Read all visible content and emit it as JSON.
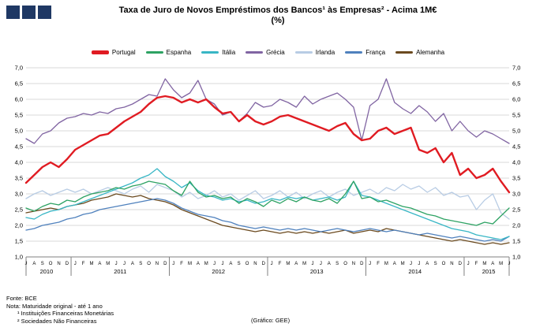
{
  "logo": {
    "color": "#1f3864",
    "square_count": 3
  },
  "header": {
    "title": "Taxa de Juro de Novos Empréstimos dos Bancos¹ às Empresas² - Acima 1M€",
    "subtitle": "(%)"
  },
  "footer": {
    "line1": "Fonte: BCE",
    "line2": "Nota: Maturidade original - até 1 ano",
    "line3": "¹ Instituições Financeiras Monetárias",
    "line4": "² Sociedades Não Financeiras",
    "credit": "(Gráfico: GEE)"
  },
  "chart_data": {
    "type": "line",
    "title": "Taxa de Juro de Novos Empréstimos dos Bancos¹ às Empresas² - Acima 1M€",
    "subtitle": "(%)",
    "ylim": [
      1.0,
      7.0
    ],
    "y_ticks": [
      7.0,
      6.5,
      6.0,
      5.5,
      5.0,
      4.5,
      4.0,
      3.5,
      3.0,
      2.5,
      2.0,
      1.5,
      1.0
    ],
    "grid": true,
    "legend_position": "top",
    "x_month_labels": [
      "J",
      "A",
      "S",
      "O",
      "N",
      "D",
      "J",
      "F",
      "M",
      "A",
      "M",
      "J",
      "J",
      "A",
      "S",
      "O",
      "N",
      "D",
      "J",
      "F",
      "M",
      "A",
      "M",
      "J",
      "J",
      "A",
      "S",
      "O",
      "N",
      "D",
      "J",
      "F",
      "M",
      "A",
      "M",
      "J",
      "J",
      "A",
      "S",
      "O",
      "N",
      "D",
      "J",
      "F",
      "M",
      "A",
      "M",
      "J",
      "J",
      "A",
      "S",
      "O",
      "N",
      "D",
      "J",
      "F",
      "M",
      "A",
      "M",
      "J"
    ],
    "year_groups": [
      {
        "label": "2010",
        "months": 6
      },
      {
        "label": "2011",
        "months": 12
      },
      {
        "label": "2012",
        "months": 12
      },
      {
        "label": "2013",
        "months": 12
      },
      {
        "label": "2014",
        "months": 12
      },
      {
        "label": "2015",
        "months": 6
      }
    ],
    "series": [
      {
        "name": "Portugal",
        "color": "#e01b22",
        "width": 2.4,
        "values": [
          3.35,
          3.6,
          3.85,
          4.0,
          3.85,
          4.1,
          4.4,
          4.55,
          4.7,
          4.85,
          4.9,
          5.1,
          5.3,
          5.45,
          5.6,
          5.85,
          6.05,
          6.1,
          6.05,
          5.9,
          6.0,
          5.9,
          6.0,
          5.75,
          5.55,
          5.6,
          5.3,
          5.5,
          5.3,
          5.2,
          5.3,
          5.45,
          5.5,
          5.4,
          5.3,
          5.2,
          5.1,
          5.0,
          5.15,
          5.25,
          4.9,
          4.7,
          4.75,
          5.0,
          5.1,
          4.9,
          5.0,
          5.1,
          4.4,
          4.3,
          4.45,
          4.0,
          4.3,
          3.6,
          3.8,
          3.5,
          3.6,
          3.8,
          3.4,
          3.05
        ]
      },
      {
        "name": "Espanha",
        "color": "#2da263",
        "width": 1.3,
        "values": [
          2.55,
          2.45,
          2.6,
          2.7,
          2.65,
          2.8,
          2.75,
          2.9,
          3.0,
          3.05,
          3.1,
          3.2,
          3.15,
          3.25,
          3.3,
          3.4,
          3.35,
          3.3,
          3.1,
          2.95,
          3.4,
          3.05,
          2.9,
          2.95,
          2.85,
          2.9,
          2.7,
          2.85,
          2.75,
          2.6,
          2.8,
          2.7,
          2.85,
          2.75,
          2.9,
          2.8,
          2.75,
          2.85,
          2.7,
          3.0,
          3.4,
          2.85,
          2.9,
          2.75,
          2.8,
          2.7,
          2.6,
          2.55,
          2.45,
          2.35,
          2.3,
          2.2,
          2.15,
          2.1,
          2.05,
          2.0,
          2.1,
          2.05,
          2.3,
          2.55
        ]
      },
      {
        "name": "Itália",
        "color": "#38b6c5",
        "width": 1.3,
        "values": [
          2.25,
          2.2,
          2.35,
          2.45,
          2.5,
          2.6,
          2.65,
          2.75,
          2.85,
          2.95,
          3.05,
          3.15,
          3.25,
          3.35,
          3.5,
          3.6,
          3.8,
          3.55,
          3.4,
          3.2,
          3.35,
          3.1,
          2.95,
          2.9,
          2.8,
          2.85,
          2.75,
          2.8,
          2.7,
          2.75,
          2.85,
          2.8,
          2.9,
          2.85,
          2.9,
          2.8,
          2.85,
          2.9,
          2.8,
          2.9,
          3.4,
          2.95,
          2.9,
          2.8,
          2.7,
          2.6,
          2.5,
          2.4,
          2.3,
          2.2,
          2.1,
          2.0,
          1.9,
          1.85,
          1.8,
          1.7,
          1.65,
          1.6,
          1.55,
          1.65
        ]
      },
      {
        "name": "Grécia",
        "color": "#8064a2",
        "width": 1.3,
        "values": [
          4.75,
          4.6,
          4.9,
          5.0,
          5.25,
          5.4,
          5.45,
          5.55,
          5.5,
          5.6,
          5.55,
          5.7,
          5.75,
          5.85,
          6.0,
          6.15,
          6.1,
          6.65,
          6.3,
          6.05,
          6.2,
          6.6,
          6.0,
          5.85,
          5.5,
          5.6,
          5.3,
          5.55,
          5.9,
          5.75,
          5.8,
          6.0,
          5.9,
          5.75,
          6.1,
          5.85,
          6.0,
          6.1,
          6.2,
          6.0,
          5.75,
          4.7,
          5.8,
          6.0,
          6.65,
          5.9,
          5.7,
          5.55,
          5.8,
          5.6,
          5.3,
          5.55,
          5.0,
          5.3,
          5.0,
          4.8,
          5.0,
          4.9,
          4.75,
          4.6
        ]
      },
      {
        "name": "Irlanda",
        "color": "#b8cce4",
        "width": 1.3,
        "values": [
          2.85,
          3.0,
          3.1,
          2.95,
          3.05,
          3.15,
          3.05,
          3.15,
          3.0,
          3.1,
          3.2,
          3.1,
          3.0,
          3.15,
          3.25,
          3.05,
          3.3,
          3.2,
          3.1,
          2.9,
          3.05,
          2.85,
          2.95,
          3.1,
          2.9,
          3.0,
          2.8,
          2.95,
          3.1,
          2.85,
          2.95,
          3.1,
          2.9,
          3.05,
          2.85,
          3.0,
          3.1,
          2.9,
          3.05,
          3.15,
          2.95,
          3.05,
          3.15,
          3.0,
          3.2,
          3.1,
          3.3,
          3.15,
          3.25,
          3.05,
          3.2,
          2.95,
          3.05,
          2.9,
          2.95,
          2.5,
          2.8,
          3.0,
          2.4,
          2.2
        ]
      },
      {
        "name": "França",
        "color": "#4f81bd",
        "width": 1.3,
        "values": [
          1.85,
          1.9,
          2.0,
          2.05,
          2.1,
          2.2,
          2.25,
          2.35,
          2.4,
          2.5,
          2.55,
          2.6,
          2.65,
          2.7,
          2.75,
          2.8,
          2.85,
          2.8,
          2.7,
          2.55,
          2.45,
          2.35,
          2.3,
          2.25,
          2.15,
          2.1,
          2.0,
          1.95,
          1.9,
          1.95,
          1.9,
          1.85,
          1.9,
          1.85,
          1.9,
          1.85,
          1.8,
          1.85,
          1.9,
          1.85,
          1.8,
          1.85,
          1.9,
          1.85,
          1.8,
          1.85,
          1.8,
          1.75,
          1.7,
          1.75,
          1.7,
          1.65,
          1.6,
          1.65,
          1.6,
          1.55,
          1.5,
          1.55,
          1.5,
          1.65
        ]
      },
      {
        "name": "Alemanha",
        "color": "#6b4a1f",
        "width": 1.3,
        "values": [
          2.4,
          2.45,
          2.5,
          2.55,
          2.5,
          2.6,
          2.65,
          2.7,
          2.8,
          2.85,
          2.9,
          3.0,
          2.95,
          2.9,
          2.95,
          2.85,
          2.8,
          2.75,
          2.65,
          2.5,
          2.4,
          2.3,
          2.2,
          2.1,
          2.0,
          1.95,
          1.9,
          1.85,
          1.8,
          1.85,
          1.8,
          1.75,
          1.8,
          1.75,
          1.8,
          1.75,
          1.8,
          1.75,
          1.8,
          1.85,
          1.75,
          1.8,
          1.85,
          1.8,
          1.9,
          1.85,
          1.8,
          1.75,
          1.7,
          1.65,
          1.6,
          1.55,
          1.5,
          1.55,
          1.5,
          1.45,
          1.4,
          1.45,
          1.4,
          1.45
        ]
      }
    ]
  }
}
